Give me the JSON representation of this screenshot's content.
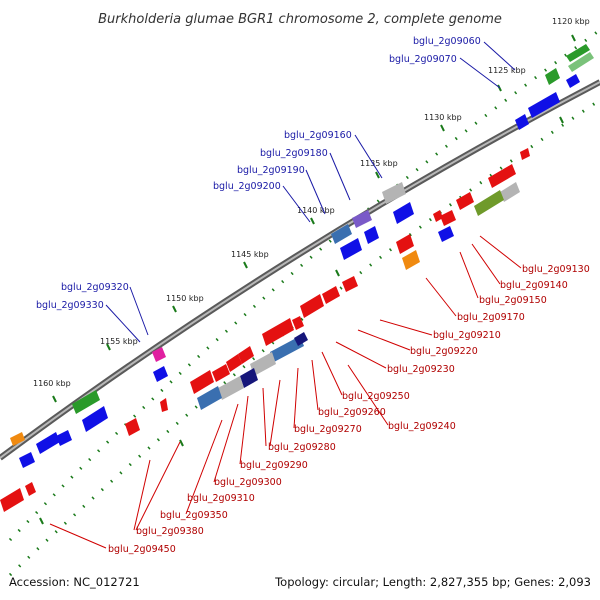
{
  "title": "Burkholderia glumae BGR1 chromosome 2, complete genome",
  "footer": {
    "accession": "Accession: NC_012721",
    "topology": "Topology: circular; Length: 2,827,355 bp; Genes: 2,093"
  },
  "colors": {
    "forward_gene": "#1010e6",
    "reverse_gene": "#e41111",
    "green_gene": "#2a9a2a",
    "olive_gene": "#6f9a2a",
    "gray_gene": "#b4b4b4",
    "navy_gene": "#16167a",
    "steel_gene": "#3a6fb0",
    "purple_gene": "#7a5ac8",
    "orange_gene": "#f08a10",
    "magenta_gene": "#e020a0",
    "backbone": "#8a8a8a",
    "tick": "#1a7a1a",
    "top_label": "#1a1aa6",
    "bottom_label": "#b00000"
  },
  "ticks": [
    {
      "label": "1120 kbp"
    },
    {
      "label": "1125 kbp"
    },
    {
      "label": "1130 kbp"
    },
    {
      "label": "1135 kbp"
    },
    {
      "label": "1140 kbp"
    },
    {
      "label": "1145 kbp"
    },
    {
      "label": "1150 kbp"
    },
    {
      "label": "1155 kbp"
    },
    {
      "label": "1160 kbp"
    }
  ],
  "top_labels": [
    {
      "text": "bglu_2g09060"
    },
    {
      "text": "bglu_2g09070"
    },
    {
      "text": "bglu_2g09160"
    },
    {
      "text": "bglu_2g09180"
    },
    {
      "text": "bglu_2g09190"
    },
    {
      "text": "bglu_2g09200"
    },
    {
      "text": "bglu_2g09320"
    },
    {
      "text": "bglu_2g09330"
    }
  ],
  "bottom_labels": [
    {
      "text": "bglu_2g09130"
    },
    {
      "text": "bglu_2g09140"
    },
    {
      "text": "bglu_2g09150"
    },
    {
      "text": "bglu_2g09170"
    },
    {
      "text": "bglu_2g09210"
    },
    {
      "text": "bglu_2g09220"
    },
    {
      "text": "bglu_2g09230"
    },
    {
      "text": "bglu_2g09250"
    },
    {
      "text": "bglu_2g09240"
    },
    {
      "text": "bglu_2g09260"
    },
    {
      "text": "bglu_2g09270"
    },
    {
      "text": "bglu_2g09280"
    },
    {
      "text": "bglu_2g09290"
    },
    {
      "text": "bglu_2g09300"
    },
    {
      "text": "bglu_2g09310"
    },
    {
      "text": "bglu_2g09350"
    },
    {
      "text": "bglu_2g09380"
    },
    {
      "text": "bglu_2g09450"
    }
  ]
}
